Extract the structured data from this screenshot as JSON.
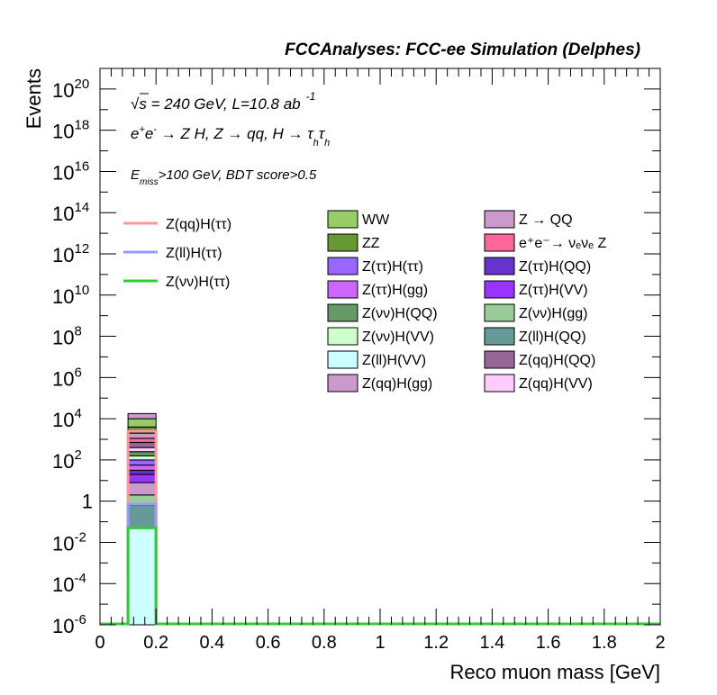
{
  "chart_data": {
    "type": "bar",
    "header": "FCCAnalyses: FCC-ee Simulation (Delphes)",
    "xlabel": "Reco muon mass [GeV]",
    "ylabel": "Events",
    "xlim": [
      0,
      2
    ],
    "ylim_exp": [
      -6,
      21
    ],
    "yscale": "log",
    "x_ticks": [
      {
        "v": 0,
        "label": "0"
      },
      {
        "v": 0.2,
        "label": "0.2"
      },
      {
        "v": 0.4,
        "label": "0.4"
      },
      {
        "v": 0.6,
        "label": "0.6"
      },
      {
        "v": 0.8,
        "label": "0.8"
      },
      {
        "v": 1.0,
        "label": "1"
      },
      {
        "v": 1.2,
        "label": "1.2"
      },
      {
        "v": 1.4,
        "label": "1.4"
      },
      {
        "v": 1.6,
        "label": "1.6"
      },
      {
        "v": 1.8,
        "label": "1.8"
      },
      {
        "v": 2.0,
        "label": "2"
      }
    ],
    "y_ticks": [
      {
        "exp": 20,
        "base": "10",
        "sup": "20"
      },
      {
        "exp": 18,
        "base": "10",
        "sup": "18"
      },
      {
        "exp": 16,
        "base": "10",
        "sup": "16"
      },
      {
        "exp": 14,
        "base": "10",
        "sup": "14"
      },
      {
        "exp": 12,
        "base": "10",
        "sup": "12"
      },
      {
        "exp": 10,
        "base": "10",
        "sup": "10"
      },
      {
        "exp": 8,
        "base": "10",
        "sup": "8"
      },
      {
        "exp": 6,
        "base": "10",
        "sup": "6"
      },
      {
        "exp": 4,
        "base": "10",
        "sup": "4"
      },
      {
        "exp": 2,
        "base": "10",
        "sup": "2"
      },
      {
        "exp": 0,
        "base": "1",
        "sup": ""
      },
      {
        "exp": -2,
        "base": "10",
        "sup": "-2"
      },
      {
        "exp": -4,
        "base": "10",
        "sup": "-4"
      },
      {
        "exp": -6,
        "base": "10",
        "sup": "-6"
      }
    ],
    "annotations": {
      "line1_sqrt": "√s",
      "line1_rest": " = 240 GeV, L=10.8 ab",
      "line1_sup": "-1",
      "line2_a": "e",
      "line2_sup1": "+",
      "line2_b": "e",
      "line2_sup2": "-",
      "line2_c": " → Z H, Z  → qq, H  → τ",
      "line2_sub1": "h",
      "line2_d": "τ",
      "line2_sub2": "h",
      "line3_a": "E",
      "line3_sub": "miss",
      "line3_b": ">100 GeV, BDT score>0.5"
    },
    "bin": {
      "x0": 0.1,
      "x1": 0.2
    },
    "stack": [
      {
        "name": "Z(ll)H(VV)",
        "color": "#ccffff",
        "log_lo": -6,
        "log_hi": -1.3
      },
      {
        "name": "Z(ll)H(QQ)",
        "color": "#669999",
        "log_lo": -1.3,
        "log_hi": -0.2
      },
      {
        "name": "Z(νν)H(gg)",
        "color": "#99cc99",
        "log_lo": -0.2,
        "log_hi": 0.3
      },
      {
        "name": "Z(qq)H(gg)",
        "color": "#cc99cc",
        "log_lo": 0.3,
        "log_hi": 0.9
      },
      {
        "name": "Z(ττ)H(VV)",
        "color": "#9933ff",
        "log_lo": 0.9,
        "log_hi": 1.3
      },
      {
        "name": "Z(ττ)H(QQ)",
        "color": "#6633cc",
        "log_lo": 1.3,
        "log_hi": 1.5
      },
      {
        "name": "Z(ττ)H(gg)",
        "color": "#cc66ff",
        "log_lo": 1.5,
        "log_hi": 1.75
      },
      {
        "name": "Z(ττ)H(ττ)",
        "color": "#9966ff",
        "log_lo": 1.75,
        "log_hi": 2.0
      },
      {
        "name": "Z(νν)H(VV)",
        "color": "#ccffcc",
        "log_lo": 2.0,
        "log_hi": 2.2
      },
      {
        "name": "Z(νν)H(QQ)",
        "color": "#669966",
        "log_lo": 2.2,
        "log_hi": 2.4
      },
      {
        "name": "Z(qq)H(VV)",
        "color": "#ffccff",
        "log_lo": 2.4,
        "log_hi": 2.6
      },
      {
        "name": "Z(qq)H(QQ)",
        "color": "#996699",
        "log_lo": 2.6,
        "log_hi": 2.85
      },
      {
        "name": "e⁺e⁻→ νₑνₑ Z",
        "color": "#ff6699",
        "log_lo": 2.85,
        "log_hi": 3.05
      },
      {
        "name": "Z → QQ",
        "color": "#cc99cc",
        "log_lo": 3.05,
        "log_hi": 3.3
      },
      {
        "name": "ZZ",
        "color": "#669933",
        "log_lo": 3.3,
        "log_hi": 3.6
      },
      {
        "name": "WW",
        "color": "#99cc66",
        "log_lo": 3.6,
        "log_hi": 4.0
      },
      {
        "name": "Z → QQ",
        "color": "#cc99cc",
        "log_lo": 4.0,
        "log_hi": 4.25
      }
    ],
    "signals": [
      {
        "name": "Z(qq)H(ττ)",
        "color": "#ff9999",
        "log_value": 3.4
      },
      {
        "name": "Z(ll)H(ττ)",
        "color": "#9999ff",
        "log_value": -0.15
      },
      {
        "name": "Z(νν)H(ττ)",
        "color": "#33cc33",
        "log_value": -1.3
      }
    ],
    "legend_signals": [
      {
        "label": "Z(qq)H(ττ)",
        "color": "#ff9999"
      },
      {
        "label": "Z(ll)H(ττ)",
        "color": "#9999ff"
      },
      {
        "label": "Z(νν)H(ττ)",
        "color": "#33cc33"
      }
    ],
    "legend_backgrounds": [
      {
        "label": "WW",
        "color": "#99cc66"
      },
      {
        "label": "Z → QQ",
        "color": "#cc99cc"
      },
      {
        "label": "ZZ",
        "color": "#669933"
      },
      {
        "label": "e⁺e⁻→ νₑνₑ Z",
        "color": "#ff6699"
      },
      {
        "label": "Z(ττ)H(ττ)",
        "color": "#9966ff"
      },
      {
        "label": "Z(ττ)H(QQ)",
        "color": "#6633cc"
      },
      {
        "label": "Z(ττ)H(gg)",
        "color": "#cc66ff"
      },
      {
        "label": "Z(ττ)H(VV)",
        "color": "#9933ff"
      },
      {
        "label": "Z(νν)H(QQ)",
        "color": "#669966"
      },
      {
        "label": "Z(νν)H(gg)",
        "color": "#99cc99"
      },
      {
        "label": "Z(νν)H(VV)",
        "color": "#ccffcc"
      },
      {
        "label": "Z(ll)H(QQ)",
        "color": "#669999"
      },
      {
        "label": "Z(ll)H(VV)",
        "color": "#ccffff"
      },
      {
        "label": "Z(qq)H(QQ)",
        "color": "#996699"
      },
      {
        "label": "Z(qq)H(gg)",
        "color": "#cc99cc"
      },
      {
        "label": "Z(qq)H(VV)",
        "color": "#ffccff"
      }
    ]
  }
}
